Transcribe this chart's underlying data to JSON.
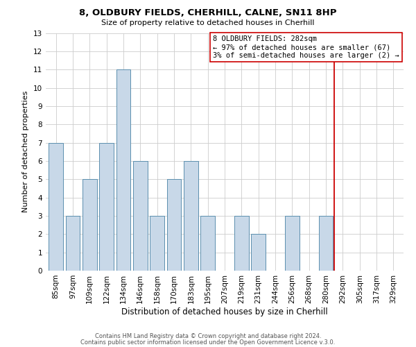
{
  "title": "8, OLDBURY FIELDS, CHERHILL, CALNE, SN11 8HP",
  "subtitle": "Size of property relative to detached houses in Cherhill",
  "xlabel": "Distribution of detached houses by size in Cherhill",
  "ylabel": "Number of detached properties",
  "bar_labels": [
    "85sqm",
    "97sqm",
    "109sqm",
    "122sqm",
    "134sqm",
    "146sqm",
    "158sqm",
    "170sqm",
    "183sqm",
    "195sqm",
    "207sqm",
    "219sqm",
    "231sqm",
    "244sqm",
    "256sqm",
    "268sqm",
    "280sqm",
    "292sqm",
    "305sqm",
    "317sqm",
    "329sqm"
  ],
  "bar_values": [
    7,
    3,
    5,
    7,
    11,
    6,
    3,
    5,
    6,
    3,
    0,
    3,
    2,
    0,
    3,
    0,
    3,
    0,
    0,
    0,
    0
  ],
  "bar_color": "#c8d8e8",
  "bar_edge_color": "#5b8fae",
  "vline_x_index": 16.5,
  "vline_color": "#cc0000",
  "annotation_text": "8 OLDBURY FIELDS: 282sqm\n← 97% of detached houses are smaller (67)\n3% of semi-detached houses are larger (2) →",
  "annotation_box_color": "#ffffff",
  "annotation_box_edge_color": "#cc0000",
  "ylim": [
    0,
    13
  ],
  "yticks": [
    0,
    1,
    2,
    3,
    4,
    5,
    6,
    7,
    8,
    9,
    10,
    11,
    12,
    13
  ],
  "footer_line1": "Contains HM Land Registry data © Crown copyright and database right 2024.",
  "footer_line2": "Contains public sector information licensed under the Open Government Licence v.3.0.",
  "background_color": "#ffffff",
  "grid_color": "#cccccc",
  "title_fontsize": 9.5,
  "subtitle_fontsize": 8.0,
  "xlabel_fontsize": 8.5,
  "ylabel_fontsize": 8.0,
  "tick_fontsize": 7.5,
  "footer_fontsize": 6.0,
  "annotation_fontsize": 7.5
}
